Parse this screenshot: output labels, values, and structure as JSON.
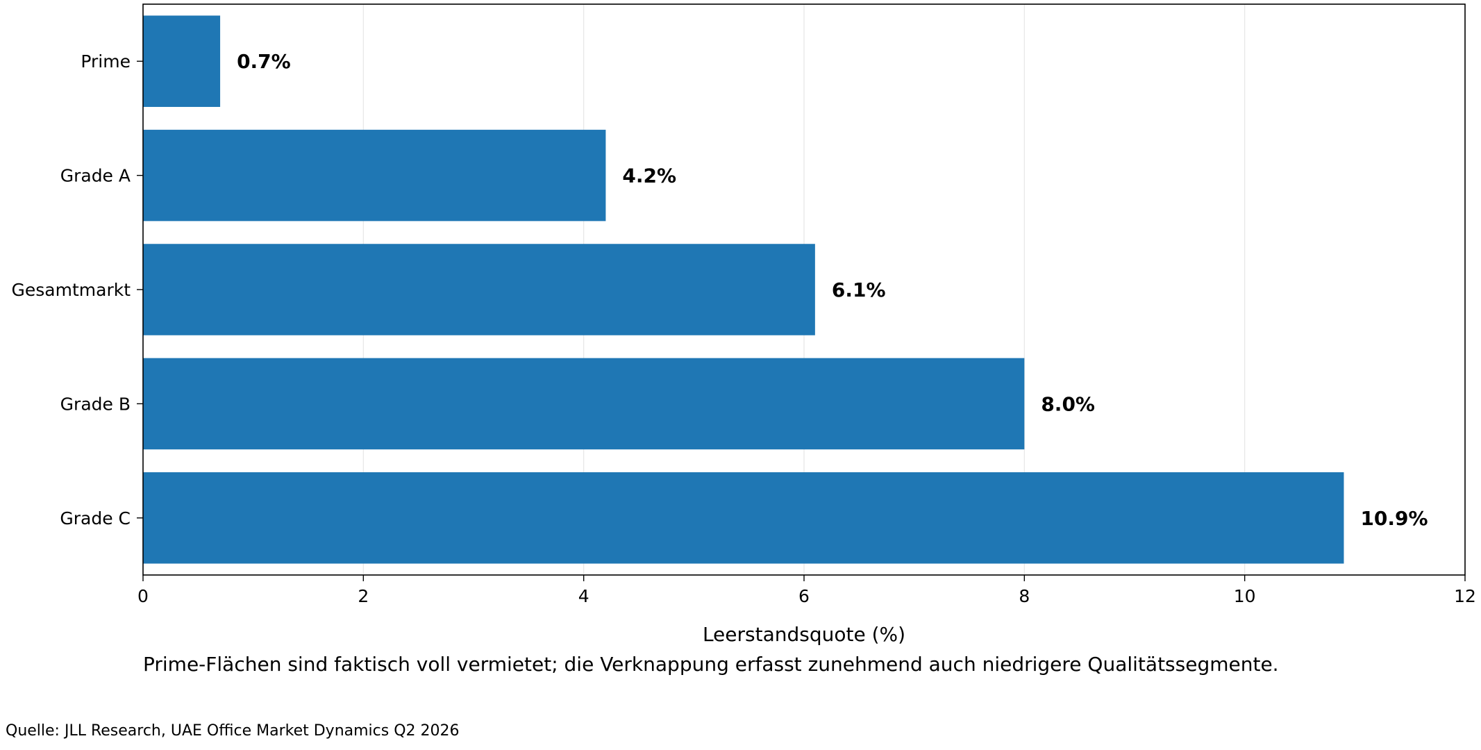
{
  "chart_data": {
    "type": "bar",
    "orientation": "horizontal",
    "categories": [
      "Prime",
      "Grade A",
      "Gesamtmarkt",
      "Grade B",
      "Grade C"
    ],
    "values": [
      0.7,
      4.2,
      6.1,
      8.0,
      10.9
    ],
    "value_labels": [
      "0.7%",
      "4.2%",
      "6.1%",
      "8.0%",
      "10.9%"
    ],
    "xlabel": "Leerstandsquote (%)",
    "xlim": [
      0,
      12
    ],
    "x_ticks": [
      0,
      2,
      4,
      6,
      8,
      10,
      12
    ],
    "grid": "vertical",
    "bar_color": "#1f77b4"
  },
  "caption": "Prime-Flächen sind faktisch voll vermietet; die Verknappung erfasst zunehmend auch niedrigere Qualitätssegmente.",
  "source": "Quelle: JLL Research, UAE Office Market Dynamics Q2 2026"
}
